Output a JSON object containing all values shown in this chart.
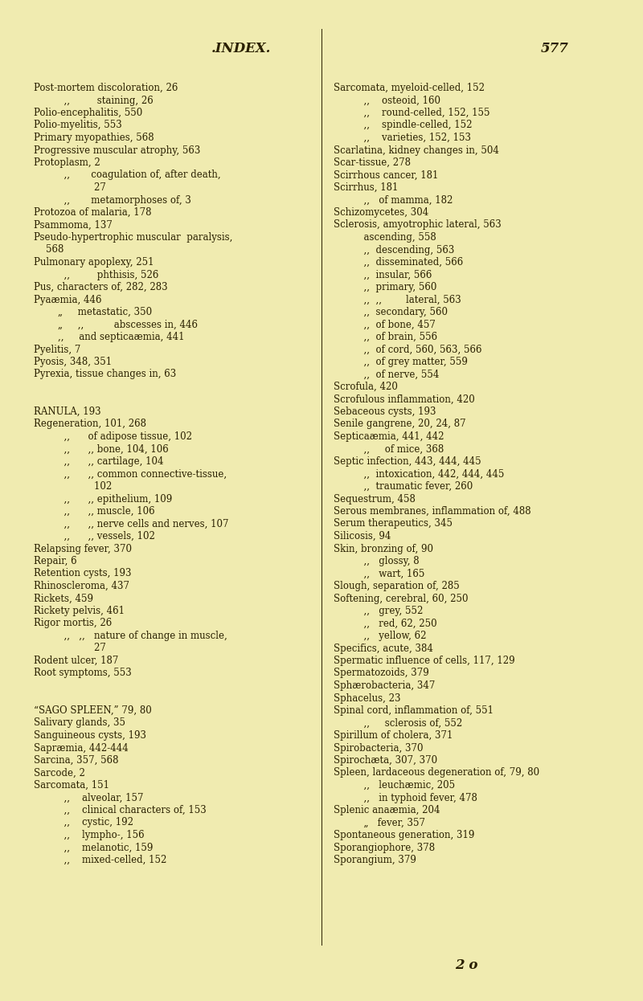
{
  "bg_color": "#f0ebb0",
  "text_color": "#2a2000",
  "title": ".INDEX.",
  "page_num": "577",
  "footer": "2 o",
  "left_col": [
    [
      "Post-mortem discoloration, 26",
      0
    ],
    [
      "          ,,         staining, 26",
      0
    ],
    [
      "Polio-encephalitis, 550",
      0
    ],
    [
      "Polio-myelitis, 553",
      0
    ],
    [
      "Primary myopathies, 568",
      0
    ],
    [
      "Progressive muscular atrophy, 563",
      0
    ],
    [
      "Protoplasm, 2",
      0
    ],
    [
      "          ,,       coagulation of, after death,",
      0
    ],
    [
      "                    27",
      0
    ],
    [
      "          ,,       metamorphoses of, 3",
      0
    ],
    [
      "Protozoa of malaria, 178",
      0
    ],
    [
      "Psammoma, 137",
      0
    ],
    [
      "Pseudo-hypertrophic muscular  paralysis,",
      0
    ],
    [
      "    568",
      0
    ],
    [
      "Pulmonary apoplexy, 251",
      0
    ],
    [
      "          ,,         phthisis, 526",
      0
    ],
    [
      "Pus, characters of, 282, 283",
      0
    ],
    [
      "Pyaæmia, 446",
      0
    ],
    [
      "        „     metastatic, 350",
      0
    ],
    [
      "        „     ,,          abscesses in, 446",
      0
    ],
    [
      "        ,,     and septicaæmia, 441",
      0
    ],
    [
      "Pyelitis, 7",
      0
    ],
    [
      "Pyosis, 348, 351",
      0
    ],
    [
      "Pyrexia, tissue changes in, 63",
      0
    ],
    [
      "",
      0
    ],
    [
      "",
      0
    ],
    [
      "RANULA, 193",
      0
    ],
    [
      "Regeneration, 101, 268",
      0
    ],
    [
      "          ,,      of adipose tissue, 102",
      0
    ],
    [
      "          ,,      ,, bone, 104, 106",
      0
    ],
    [
      "          ,,      ,, cartilage, 104",
      0
    ],
    [
      "          ,,      ,, common connective-tissue,",
      0
    ],
    [
      "                    102",
      0
    ],
    [
      "          ,,      ,, epithelium, 109",
      0
    ],
    [
      "          ,,      ,, muscle, 106",
      0
    ],
    [
      "          ,,      ,, nerve cells and nerves, 107",
      0
    ],
    [
      "          ,,      ,, vessels, 102",
      0
    ],
    [
      "Relapsing fever, 370",
      0
    ],
    [
      "Repair, 6",
      0
    ],
    [
      "Retention cysts, 193",
      0
    ],
    [
      "Rhinoscleroma, 437",
      0
    ],
    [
      "Rickets, 459",
      0
    ],
    [
      "Rickety pelvis, 461",
      0
    ],
    [
      "Rigor mortis, 26",
      0
    ],
    [
      "          ,,   ,,   nature of change in muscle,",
      0
    ],
    [
      "                    27",
      0
    ],
    [
      "Rodent ulcer, 187",
      0
    ],
    [
      "Root symptoms, 553",
      0
    ],
    [
      "",
      0
    ],
    [
      "",
      0
    ],
    [
      "“SAGO SPLEEN,” 79, 80",
      0
    ],
    [
      "Salivary glands, 35",
      0
    ],
    [
      "Sanguineous cysts, 193",
      0
    ],
    [
      "Sapræmia, 442-444",
      0
    ],
    [
      "Sarcina, 357, 568",
      0
    ],
    [
      "Sarcode, 2",
      0
    ],
    [
      "Sarcomata, 151",
      0
    ],
    [
      "          ,,    alveolar, 157",
      0
    ],
    [
      "          ,,    clinical characters of, 153",
      0
    ],
    [
      "          ,,    cystic, 192",
      0
    ],
    [
      "          ,,    lympho-, 156",
      0
    ],
    [
      "          ,,    melanotic, 159",
      0
    ],
    [
      "          ,,    mixed-celled, 152",
      0
    ]
  ],
  "right_col": [
    [
      "Sarcomata, myeloid-celled, 152",
      0
    ],
    [
      "          ,,    osteoid, 160",
      0
    ],
    [
      "          ,,    round-celled, 152, 155",
      0
    ],
    [
      "          ,,    spindle-celled, 152",
      0
    ],
    [
      "          ,,    varieties, 152, 153",
      0
    ],
    [
      "Scarlatina, kidney changes in, 504",
      0
    ],
    [
      "Scar-tissue, 278",
      0
    ],
    [
      "Scirrhous cancer, 181",
      0
    ],
    [
      "Scirrhus, 181",
      0
    ],
    [
      "          ,,   of mamma, 182",
      0
    ],
    [
      "Schizomycetes, 304",
      0
    ],
    [
      "Sclerosis, amyotrophic lateral, 563",
      0
    ],
    [
      "          ascending, 558",
      0
    ],
    [
      "          ,,  descending, 563",
      0
    ],
    [
      "          ,,  disseminated, 566",
      0
    ],
    [
      "          ,,  insular, 566",
      0
    ],
    [
      "          ,,  primary, 560",
      0
    ],
    [
      "          ,,  ,,        lateral, 563",
      0
    ],
    [
      "          ,,  secondary, 560",
      0
    ],
    [
      "          ,,  of bone, 457",
      0
    ],
    [
      "          ,,  of brain, 556",
      0
    ],
    [
      "          ,,  of cord, 560, 563, 566",
      0
    ],
    [
      "          ,,  of grey matter, 559",
      0
    ],
    [
      "          ,,  of nerve, 554",
      0
    ],
    [
      "Scrofula, 420",
      0
    ],
    [
      "Scrofulous inflammation, 420",
      0
    ],
    [
      "Sebaceous cysts, 193",
      0
    ],
    [
      "Senile gangrene, 20, 24, 87",
      0
    ],
    [
      "Septicaæmia, 441, 442",
      0
    ],
    [
      "          ,,     of mice, 368",
      0
    ],
    [
      "Septic infection, 443, 444, 445",
      0
    ],
    [
      "          ,,  intoxication, 442, 444, 445",
      0
    ],
    [
      "          ,,  traumatic fever, 260",
      0
    ],
    [
      "Sequestrum, 458",
      0
    ],
    [
      "Serous membranes, inflammation of, 488",
      0
    ],
    [
      "Serum therapeutics, 345",
      0
    ],
    [
      "Silicosis, 94",
      0
    ],
    [
      "Skin, bronzing of, 90",
      0
    ],
    [
      "          ,,   glossy, 8",
      0
    ],
    [
      "          ,,   wart, 165",
      0
    ],
    [
      "Slough, separation of, 285",
      0
    ],
    [
      "Softening, cerebral, 60, 250",
      0
    ],
    [
      "          ,,   grey, 552",
      0
    ],
    [
      "          ,,   red, 62, 250",
      0
    ],
    [
      "          ,,   yellow, 62",
      0
    ],
    [
      "Specifics, acute, 384",
      0
    ],
    [
      "Spermatic influence of cells, 117, 129",
      0
    ],
    [
      "Spermatozoids, 379",
      0
    ],
    [
      "Sphærobacteria, 347",
      0
    ],
    [
      "Sphacelus, 23",
      0
    ],
    [
      "Spinal cord, inflammation of, 551",
      0
    ],
    [
      "          ,,     sclerosis of, 552",
      0
    ],
    [
      "Spirillum of cholera, 371",
      0
    ],
    [
      "Spirobacteria, 370",
      0
    ],
    [
      "Spirochæta, 307, 370",
      0
    ],
    [
      "Spleen, lardaceous degeneration of, 79, 80",
      0
    ],
    [
      "          ,,   leuchæmic, 205",
      0
    ],
    [
      "          ,,   in typhoid fever, 478",
      0
    ],
    [
      "Splenic anaæmia, 204",
      0
    ],
    [
      "          „   fever, 357",
      0
    ],
    [
      "Spontaneous generation, 319",
      0
    ],
    [
      "Sporangiophore, 378",
      0
    ],
    [
      "Sporangium, 379",
      0
    ]
  ]
}
